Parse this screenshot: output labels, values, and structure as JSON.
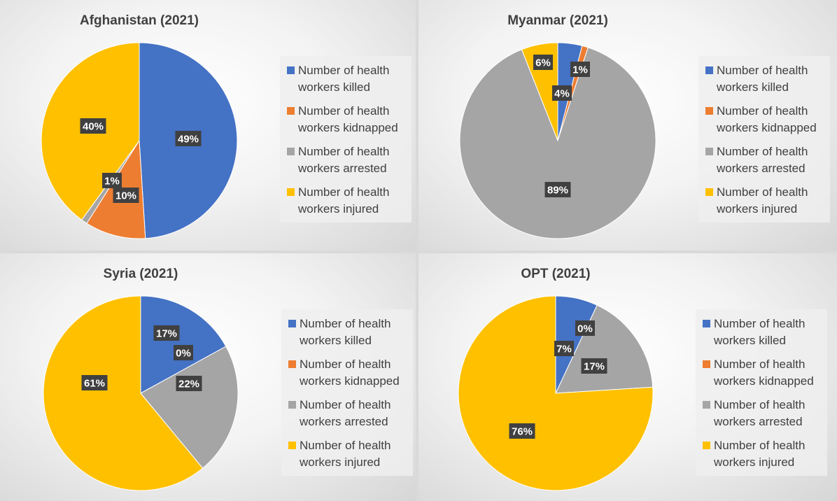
{
  "chart_data": [
    {
      "type": "pie",
      "title": "Afghanistan (2021)",
      "categories": [
        "Number of health workers killed",
        "Number of health workers kidnapped",
        "Number of health workers arrested",
        "Number of health workers injured"
      ],
      "values": [
        49,
        10,
        1,
        40
      ],
      "data_labels": [
        "49%",
        "10%",
        "1%",
        "40%"
      ],
      "legend_position": "right"
    },
    {
      "type": "pie",
      "title": "Myanmar (2021)",
      "categories": [
        "Number of health workers killed",
        "Number of health workers kidnapped",
        "Number of health workers arrested",
        "Number of health workers injured"
      ],
      "values": [
        4,
        1,
        89,
        6
      ],
      "data_labels": [
        "4%",
        "1%",
        "89%",
        "6%"
      ],
      "legend_position": "right"
    },
    {
      "type": "pie",
      "title": "Syria (2021)",
      "categories": [
        "Number of health workers killed",
        "Number of health workers kidnapped",
        "Number of health workers arrested",
        "Number of health workers injured"
      ],
      "values": [
        17,
        0,
        22,
        61
      ],
      "data_labels": [
        "17%",
        "0%",
        "22%",
        "61%"
      ],
      "legend_position": "right"
    },
    {
      "type": "pie",
      "title": "OPT (2021)",
      "categories": [
        "Number of health workers killed",
        "Number of health workers kidnapped",
        "Number of health workers arrested",
        "Number of health workers injured"
      ],
      "values": [
        7,
        0,
        17,
        76
      ],
      "data_labels": [
        "7%",
        "0%",
        "17%",
        "76%"
      ],
      "legend_position": "right"
    }
  ],
  "legend_lines": [
    [
      "Number of health",
      "workers killed"
    ],
    [
      "Number of health",
      "workers kidnapped"
    ],
    [
      "Number of health",
      "workers arrested"
    ],
    [
      "Number of health",
      "workers injured"
    ]
  ],
  "colors": [
    "#4472c4",
    "#ed7d31",
    "#a5a5a5",
    "#ffc000"
  ]
}
